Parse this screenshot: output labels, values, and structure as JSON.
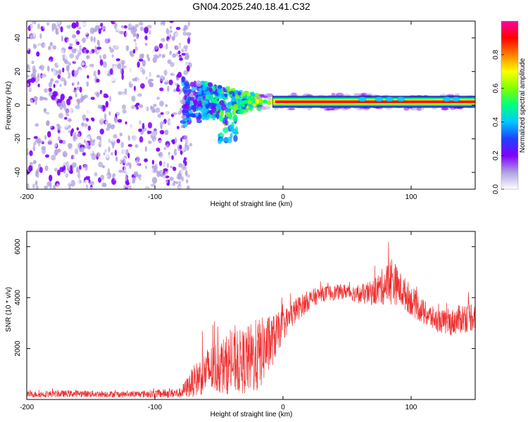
{
  "title": "GN04.2025.240.18.41.C32",
  "chart_data": [
    {
      "type": "heatmap",
      "xlabel": "Height of straight line (km)",
      "ylabel": "Frequency (Hz)",
      "xlim": [
        -200,
        150
      ],
      "ylim": [
        -50,
        50
      ],
      "xticks": [
        {
          "value": -200,
          "label": "-200"
        },
        {
          "value": -100,
          "label": "-100"
        },
        {
          "value": 0,
          "label": "0"
        },
        {
          "value": 100,
          "label": "100"
        }
      ],
      "yticks": [
        {
          "value": -40,
          "label": "-40"
        },
        {
          "value": -20,
          "label": "-20"
        },
        {
          "value": 0,
          "label": "0"
        },
        {
          "value": 20,
          "label": "20"
        },
        {
          "value": 40,
          "label": "40"
        }
      ],
      "colorbar": {
        "label": "Normalized spectral amplitude",
        "range": [
          0,
          1
        ],
        "ticks": [
          {
            "value": 0.0,
            "label": "0.0"
          },
          {
            "value": 0.2,
            "label": "0.2"
          },
          {
            "value": 0.4,
            "label": "0.4"
          },
          {
            "value": 0.6,
            "label": "0.6"
          },
          {
            "value": 0.8,
            "label": "0.8"
          }
        ],
        "colors": [
          "#ffffff",
          "#b0a0e0",
          "#7f00ff",
          "#2040ff",
          "#00c8ff",
          "#00ff80",
          "#80ff00",
          "#ffff00",
          "#ff8000",
          "#ff0000",
          "#ff00a0"
        ]
      },
      "description_points": {
        "noise_region_x": [
          -200,
          -75
        ],
        "band_center_hz": 2,
        "band_start_x": -75
      }
    },
    {
      "type": "line",
      "xlabel": "Height of straight line (km)",
      "ylabel": "SNR (10 * v/v)",
      "xlim": [
        -200,
        150
      ],
      "ylim": [
        0,
        6600
      ],
      "xticks": [
        {
          "value": -200,
          "label": "-200"
        },
        {
          "value": -100,
          "label": "-100"
        },
        {
          "value": 0,
          "label": "0"
        },
        {
          "value": 100,
          "label": "100"
        }
      ],
      "yticks": [
        {
          "value": 2000,
          "label": "2000"
        },
        {
          "value": 4000,
          "label": "4000"
        },
        {
          "value": 6000,
          "label": "6000"
        }
      ],
      "series": [
        {
          "name": "SNR",
          "color": "#ee3030",
          "envelope": {
            "x": [
              -200,
              -160,
              -120,
              -80,
              -70,
              -60,
              -50,
              -40,
              -30,
              -20,
              -10,
              0,
              10,
              20,
              30,
              40,
              50,
              60,
              70,
              80,
              85,
              90,
              100,
              110,
              120,
              130,
              140,
              150
            ],
            "mean": [
              200,
              230,
              200,
              250,
              700,
              1100,
              1300,
              1400,
              1500,
              1700,
              2200,
              2900,
              3500,
              3900,
              4150,
              4200,
              4250,
              4100,
              4200,
              4500,
              4700,
              4400,
              3900,
              3400,
              3100,
              3000,
              3200,
              3300
            ],
            "spread": [
              120,
              140,
              120,
              200,
              600,
              900,
              1100,
              1200,
              1300,
              1500,
              1100,
              600,
              500,
              400,
              300,
              300,
              300,
              350,
              500,
              800,
              1000,
              700,
              600,
              500,
              450,
              500,
              600,
              600
            ]
          }
        }
      ]
    }
  ]
}
